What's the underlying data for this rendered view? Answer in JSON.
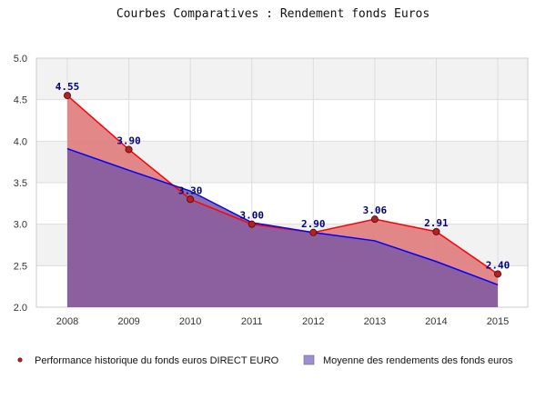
{
  "chart_data": {
    "type": "area",
    "title": "Courbes Comparatives : Rendement fonds Euros",
    "xlabel": "",
    "ylabel": "",
    "categories": [
      "2008",
      "2009",
      "2010",
      "2011",
      "2012",
      "2013",
      "2014",
      "2015"
    ],
    "ylim": [
      2.0,
      5.0
    ],
    "yticks": [
      "2.0",
      "2.5",
      "3.0",
      "3.5",
      "4.0",
      "4.5",
      "5.0"
    ],
    "grid": true,
    "legend_position": "bottom",
    "series": [
      {
        "name": "Performance historique du fonds euros DIRECT EURO",
        "values": [
          4.55,
          3.9,
          3.3,
          3.0,
          2.9,
          3.06,
          2.91,
          2.4
        ],
        "labels": [
          "4.55",
          "3.90",
          "3.30",
          "3.00",
          "2.90",
          "3.06",
          "2.91",
          "2.40"
        ],
        "line_color": "#ff0000",
        "fill_color": "#e07b7b",
        "marker_color": "#b22222"
      },
      {
        "name": "Moyenne des rendements des fonds euros",
        "values": [
          3.91,
          3.65,
          3.4,
          3.02,
          2.9,
          2.8,
          2.55,
          2.27
        ],
        "line_color": "#0000ff",
        "fill_color": "#7f5aa2"
      }
    ]
  }
}
